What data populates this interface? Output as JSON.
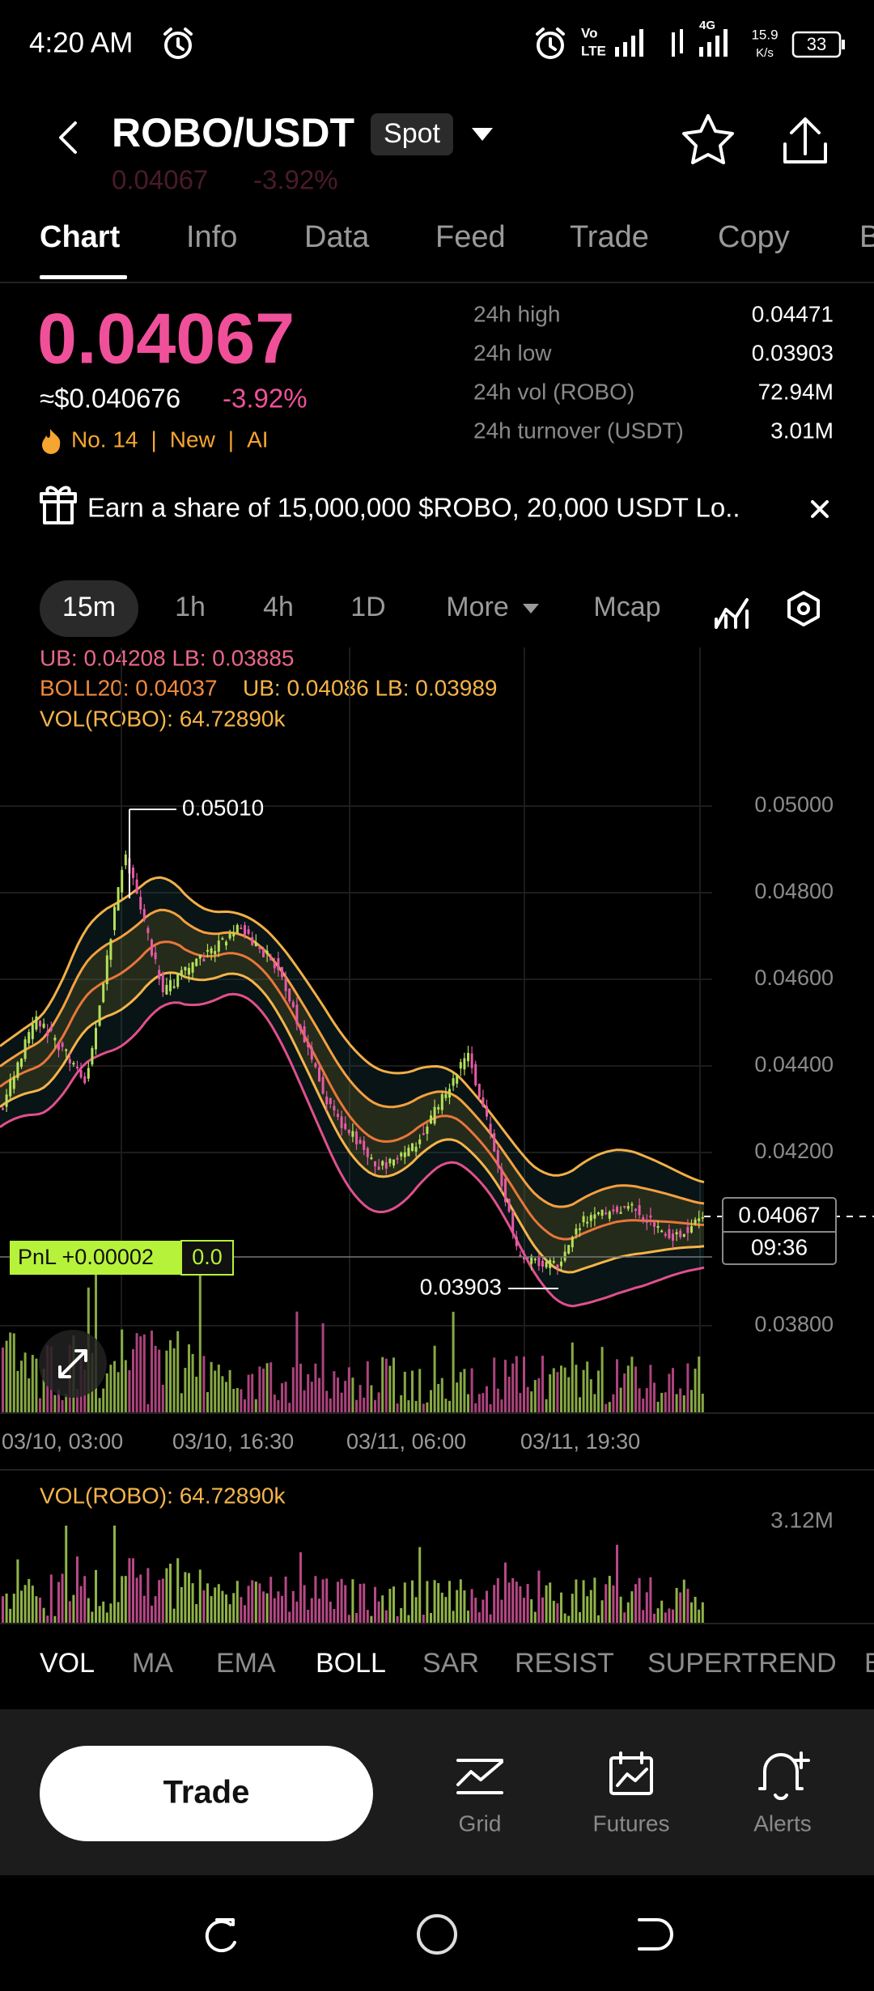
{
  "status_bar": {
    "time": "4:20 AM",
    "network_speed": "15.9",
    "network_unit": "K/s",
    "battery": "33"
  },
  "header": {
    "pair": "ROBO/USDT",
    "market": "Spot",
    "price_faded": "0.04067",
    "change_faded": "-3.92%"
  },
  "tabs": [
    "Chart",
    "Info",
    "Data",
    "Feed",
    "Trade",
    "Copy",
    "B"
  ],
  "ticker": {
    "price": "0.04067",
    "usd_price": "≈$0.040676",
    "change": "-3.92%",
    "badges": [
      "No. 14",
      "New",
      "AI"
    ],
    "separator": "|",
    "stats": [
      {
        "label": "24h high",
        "value": "0.04471"
      },
      {
        "label": "24h low",
        "value": "0.03903"
      },
      {
        "label": "24h vol (ROBO)",
        "value": "72.94M"
      },
      {
        "label": "24h turnover (USDT)",
        "value": "3.01M"
      }
    ]
  },
  "banner": {
    "text": "Earn a share of 15,000,000 $ROBO, 20,000 USDT Lo.."
  },
  "timeframes": [
    "15m",
    "1h",
    "4h",
    "1D",
    "More",
    "Mcap"
  ],
  "legend": {
    "line1": "UB: 0.04208  LB: 0.03885",
    "boll": "BOLL20: 0.04037",
    "boll_bands": "UB: 0.04086  LB: 0.03989",
    "vol": "VOL(ROBO): 64.72890k"
  },
  "chart": {
    "price_ticks": [
      "0.05000",
      "0.04800",
      "0.04600",
      "0.04400",
      "0.04200",
      "0.03800"
    ],
    "time_labels": [
      "03/10, 03:00",
      "03/10, 16:30",
      "03/11, 06:00",
      "03/11, 19:30"
    ],
    "high_label": "0.05010",
    "low_label": "0.03903",
    "current_price": "0.04067",
    "countdown": "09:36",
    "pnl_label": "PnL +0.00002",
    "pnl_value": "0.0"
  },
  "volume_pane": {
    "label": "VOL(ROBO): 64.72890k",
    "max": "3.12M"
  },
  "indicator_tabs": [
    "VOL",
    "MA",
    "EMA",
    "BOLL",
    "SAR",
    "RESIST",
    "SUPERTREND",
    "B"
  ],
  "action_bar": {
    "trade": "Trade",
    "buttons": [
      "Grid",
      "Futures",
      "Alerts"
    ]
  }
}
